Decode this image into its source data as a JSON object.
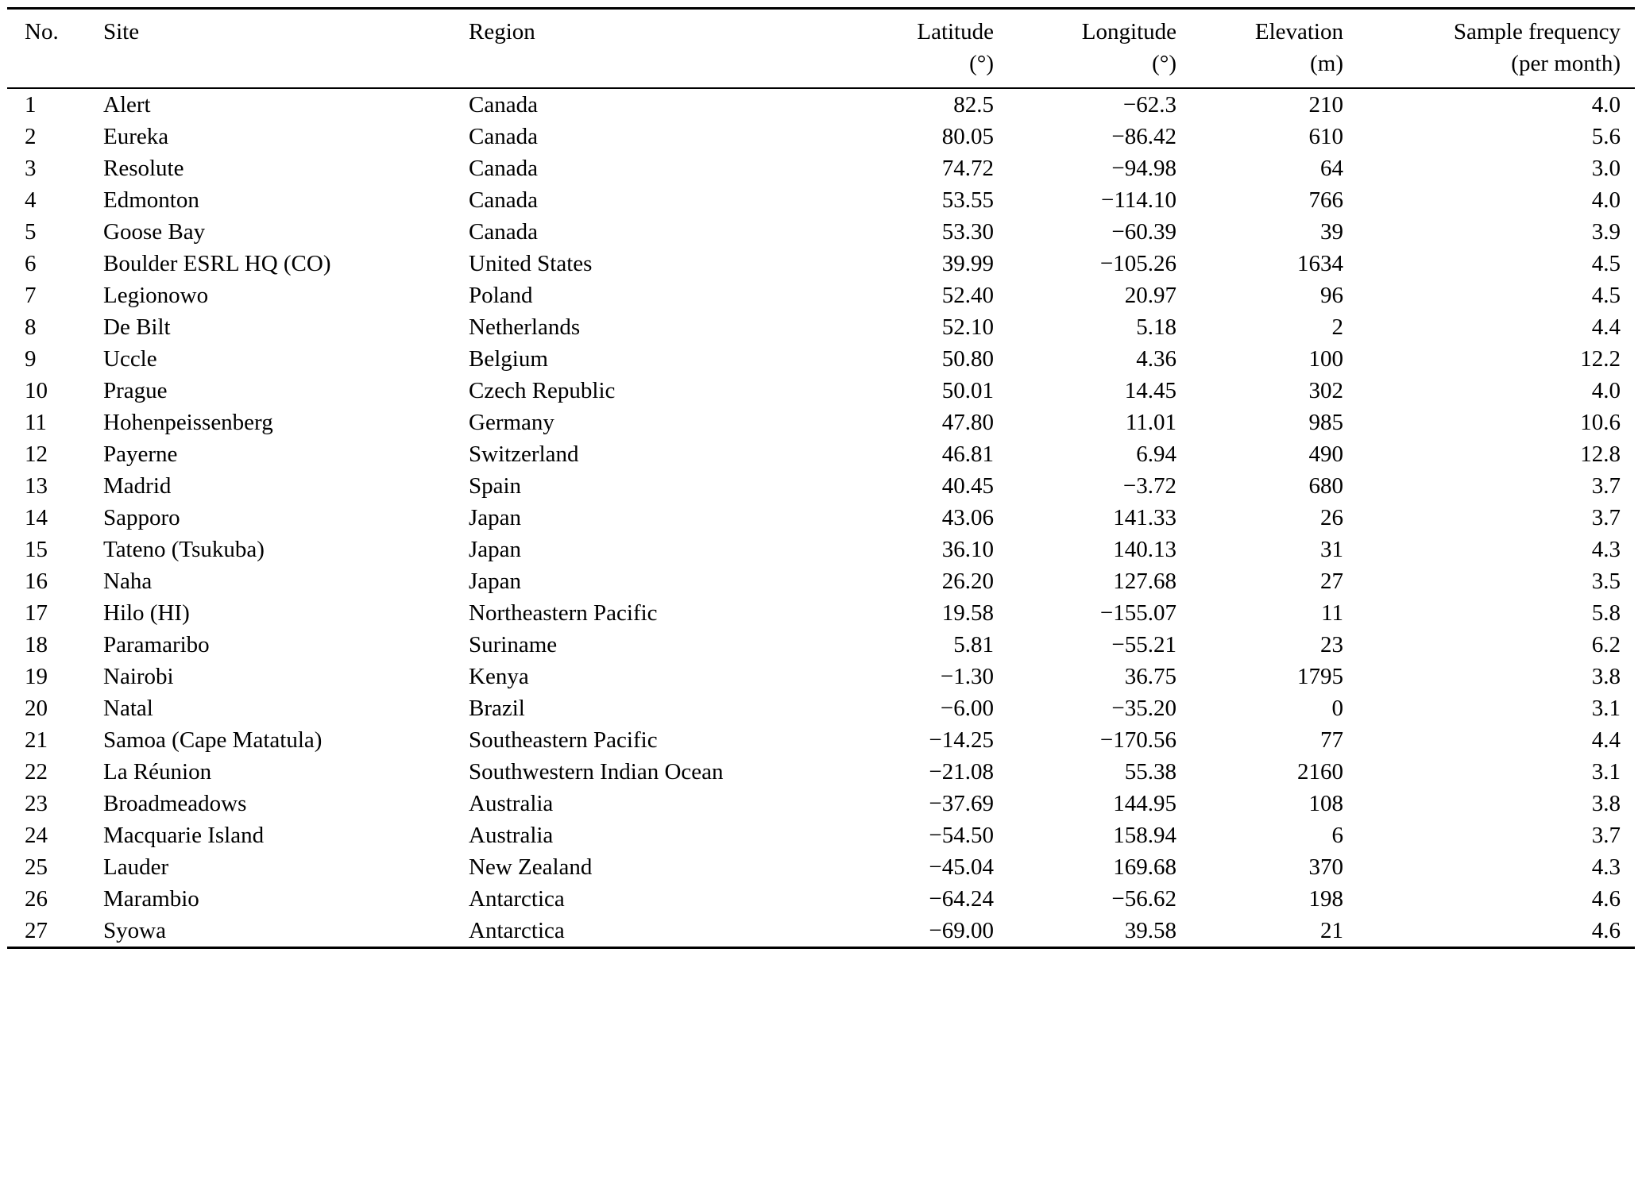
{
  "table": {
    "columns": [
      {
        "key": "no",
        "label": "No.",
        "unit": ""
      },
      {
        "key": "site",
        "label": "Site",
        "unit": ""
      },
      {
        "key": "region",
        "label": "Region",
        "unit": ""
      },
      {
        "key": "latitude",
        "label": "Latitude",
        "unit": "(°)"
      },
      {
        "key": "longitude",
        "label": "Longitude",
        "unit": "(°)"
      },
      {
        "key": "elevation",
        "label": "Elevation",
        "unit": "(m)"
      },
      {
        "key": "frequency",
        "label": "Sample frequency",
        "unit": "(per month)"
      }
    ],
    "rows": [
      [
        "1",
        "Alert",
        "Canada",
        "82.5",
        "−62.3",
        "210",
        "4.0"
      ],
      [
        "2",
        "Eureka",
        "Canada",
        "80.05",
        "−86.42",
        "610",
        "5.6"
      ],
      [
        "3",
        "Resolute",
        "Canada",
        "74.72",
        "−94.98",
        "64",
        "3.0"
      ],
      [
        "4",
        "Edmonton",
        "Canada",
        "53.55",
        "−114.10",
        "766",
        "4.0"
      ],
      [
        "5",
        "Goose Bay",
        "Canada",
        "53.30",
        "−60.39",
        "39",
        "3.9"
      ],
      [
        "6",
        "Boulder ESRL HQ (CO)",
        "United States",
        "39.99",
        "−105.26",
        "1634",
        "4.5"
      ],
      [
        "7",
        "Legionowo",
        "Poland",
        "52.40",
        "20.97",
        "96",
        "4.5"
      ],
      [
        "8",
        "De Bilt",
        "Netherlands",
        "52.10",
        "5.18",
        "2",
        "4.4"
      ],
      [
        "9",
        "Uccle",
        "Belgium",
        "50.80",
        "4.36",
        "100",
        "12.2"
      ],
      [
        "10",
        "Prague",
        "Czech Republic",
        "50.01",
        "14.45",
        "302",
        "4.0"
      ],
      [
        "11",
        "Hohenpeissenberg",
        "Germany",
        "47.80",
        "11.01",
        "985",
        "10.6"
      ],
      [
        "12",
        "Payerne",
        "Switzerland",
        "46.81",
        "6.94",
        "490",
        "12.8"
      ],
      [
        "13",
        "Madrid",
        "Spain",
        "40.45",
        "−3.72",
        "680",
        "3.7"
      ],
      [
        "14",
        "Sapporo",
        "Japan",
        "43.06",
        "141.33",
        "26",
        "3.7"
      ],
      [
        "15",
        "Tateno (Tsukuba)",
        "Japan",
        "36.10",
        "140.13",
        "31",
        "4.3"
      ],
      [
        "16",
        "Naha",
        "Japan",
        "26.20",
        "127.68",
        "27",
        "3.5"
      ],
      [
        "17",
        "Hilo (HI)",
        "Northeastern Pacific",
        "19.58",
        "−155.07",
        "11",
        "5.8"
      ],
      [
        "18",
        "Paramaribo",
        "Suriname",
        "5.81",
        "−55.21",
        "23",
        "6.2"
      ],
      [
        "19",
        "Nairobi",
        "Kenya",
        "−1.30",
        "36.75",
        "1795",
        "3.8"
      ],
      [
        "20",
        "Natal",
        "Brazil",
        "−6.00",
        "−35.20",
        "0",
        "3.1"
      ],
      [
        "21",
        "Samoa (Cape Matatula)",
        "Southeastern Pacific",
        "−14.25",
        "−170.56",
        "77",
        "4.4"
      ],
      [
        "22",
        "La Réunion",
        "Southwestern Indian Ocean",
        "−21.08",
        "55.38",
        "2160",
        "3.1"
      ],
      [
        "23",
        "Broadmeadows",
        "Australia",
        "−37.69",
        "144.95",
        "108",
        "3.8"
      ],
      [
        "24",
        "Macquarie Island",
        "Australia",
        "−54.50",
        "158.94",
        "6",
        "3.7"
      ],
      [
        "25",
        "Lauder",
        "New Zealand",
        "−45.04",
        "169.68",
        "370",
        "4.3"
      ],
      [
        "26",
        "Marambio",
        "Antarctica",
        "−64.24",
        "−56.62",
        "198",
        "4.6"
      ],
      [
        "27",
        "Syowa",
        "Antarctica",
        "−69.00",
        "39.58",
        "21",
        "4.6"
      ]
    ]
  }
}
